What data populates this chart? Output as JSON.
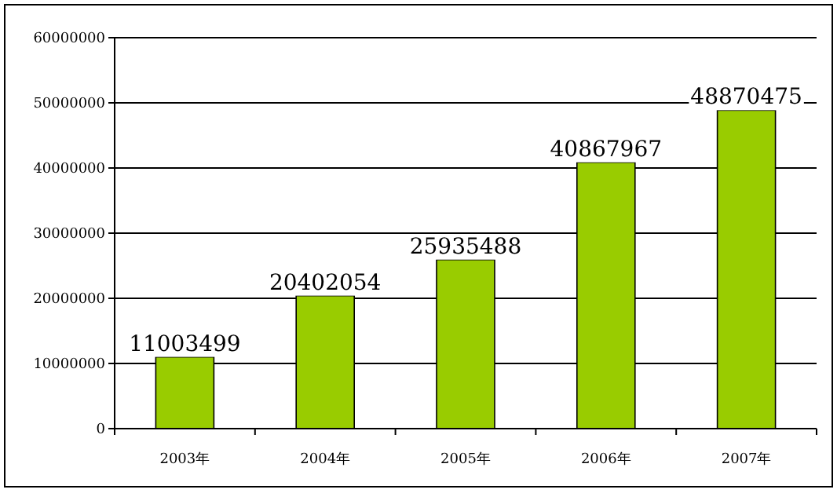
{
  "chart_data": {
    "type": "bar",
    "categories": [
      "2003年",
      "2004年",
      "2005年",
      "2006年",
      "2007年"
    ],
    "values": [
      11003499,
      20402054,
      25935488,
      40867967,
      48870475
    ],
    "color": "#99cc00",
    "ylim": [
      0,
      60000000
    ],
    "yticks": [
      0,
      10000000,
      20000000,
      30000000,
      40000000,
      50000000,
      60000000
    ],
    "grid": "y",
    "data_labels": true
  }
}
